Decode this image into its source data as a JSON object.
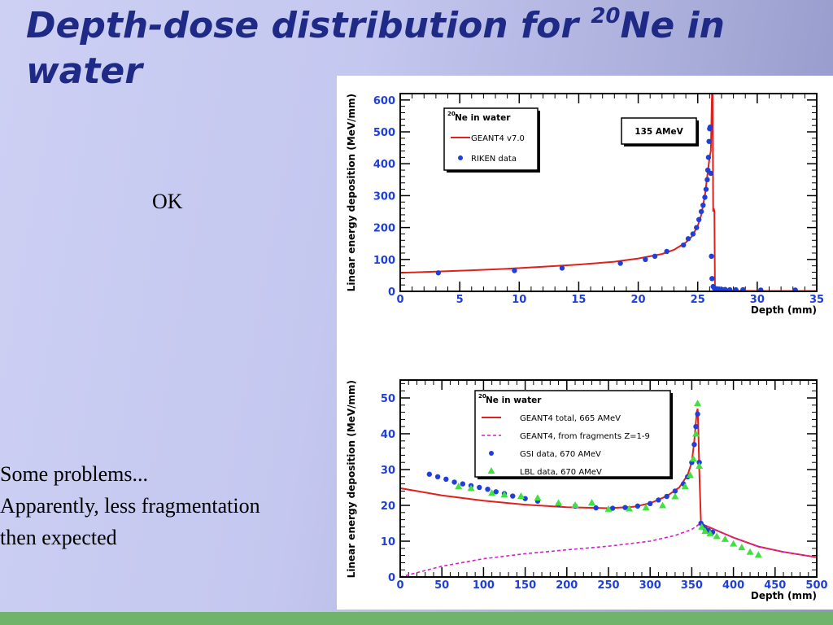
{
  "slide": {
    "title_main": "Depth-dose distribution for ",
    "title_sup": "20",
    "title_rest": "Ne in water",
    "ok_text": "OK",
    "problems_lines": [
      "Some problems...",
      "Apparently, less fragmentation",
      "then expected"
    ]
  },
  "colors": {
    "title": "#1f2a86",
    "geant_line": "#e0201c",
    "data_points": "#1f3fd8",
    "fragments_line": "#d020d0",
    "lbl_points": "#40e040",
    "axis_tick_labels": "#1f3fd8",
    "footer_bar": "#6fb46a"
  },
  "chart_data": [
    {
      "type": "line",
      "xlabel": "Depth (mm)",
      "ylabel": "Linear energy deposition (MeV/mm)",
      "xlim": [
        0,
        35
      ],
      "ylim": [
        0,
        620
      ],
      "xticks": [
        0,
        5,
        10,
        15,
        20,
        25,
        30,
        35
      ],
      "yticks": [
        0,
        100,
        200,
        300,
        400,
        500,
        600
      ],
      "annotation": "135 AMeV",
      "legend_title_sup": "20",
      "legend_title": "Ne in water",
      "legend_position": "top-left",
      "series": [
        {
          "name": "GEANT4 v7.0",
          "kind": "line",
          "x": [
            0,
            3,
            6,
            9,
            12,
            15,
            18,
            20,
            22,
            23,
            24,
            24.5,
            25,
            25.3,
            25.6,
            25.8,
            26.0,
            26.1,
            26.2,
            26.25,
            26.3,
            26.35,
            26.4,
            26.45,
            26.5,
            27,
            28,
            30,
            32,
            35
          ],
          "y": [
            58,
            62,
            66,
            71,
            77,
            84,
            93,
            103,
            117,
            130,
            153,
            172,
            205,
            240,
            300,
            360,
            420,
            440,
            625,
            625,
            250,
            260,
            250,
            5,
            3,
            2,
            2,
            1,
            1,
            1
          ]
        },
        {
          "name": "RIKEN data",
          "kind": "scatter",
          "x": [
            3.2,
            9.6,
            13.6,
            18.5,
            20.6,
            21.4,
            22.4,
            23.8,
            24.2,
            24.6,
            24.9,
            25.1,
            25.3,
            25.45,
            25.6,
            25.7,
            25.8,
            25.85,
            25.9,
            25.95,
            26.0,
            26.05,
            26.1,
            26.15,
            26.2,
            26.3,
            26.4,
            26.6,
            26.8,
            27.0,
            27.3,
            27.7,
            28.2,
            28.8,
            30.3,
            33.2
          ],
          "y": [
            58,
            65,
            73,
            88,
            100,
            110,
            125,
            145,
            165,
            180,
            200,
            225,
            250,
            270,
            295,
            320,
            350,
            380,
            420,
            470,
            510,
            515,
            370,
            110,
            40,
            15,
            10,
            8,
            7,
            6,
            6,
            5,
            5,
            5,
            4,
            4
          ]
        }
      ]
    },
    {
      "type": "line",
      "xlabel": "Depth (mm)",
      "ylabel": "Linear energy deposition (MeV/mm)",
      "xlim": [
        0,
        500
      ],
      "ylim": [
        0,
        55
      ],
      "xticks": [
        0,
        50,
        100,
        150,
        200,
        250,
        300,
        350,
        400,
        450,
        500
      ],
      "yticks": [
        0,
        10,
        20,
        30,
        40,
        50
      ],
      "legend_title_sup": "20",
      "legend_title": "Ne in water",
      "legend_position": "top-center",
      "series": [
        {
          "name": "GEANT4 total, 665 AMeV",
          "kind": "line",
          "x": [
            0,
            50,
            100,
            150,
            200,
            250,
            280,
            300,
            320,
            335,
            345,
            350,
            353,
            356,
            357,
            358,
            359,
            361,
            362,
            380,
            400,
            430,
            460,
            500
          ],
          "y": [
            24.8,
            22.8,
            21.3,
            20.2,
            19.5,
            19.2,
            19.6,
            20.6,
            22.6,
            25.0,
            28.5,
            32.0,
            38.0,
            46.0,
            47.0,
            40.0,
            30.0,
            15.0,
            14.8,
            13.0,
            11.0,
            8.5,
            7.0,
            5.5
          ]
        },
        {
          "name": "GEANT4, from fragments Z=1-9",
          "kind": "dashed",
          "x": [
            0,
            50,
            100,
            150,
            200,
            250,
            300,
            330,
            350,
            358,
            362,
            380,
            400,
            430,
            460,
            500
          ],
          "y": [
            0,
            3.0,
            5.1,
            6.5,
            7.6,
            8.6,
            10.0,
            11.6,
            13.3,
            14.6,
            14.8,
            13.0,
            11.0,
            8.5,
            7.0,
            5.5
          ]
        },
        {
          "name": "GSI data, 670 AMeV",
          "kind": "scatter",
          "x": [
            35,
            45,
            55,
            65,
            75,
            85,
            95,
            105,
            115,
            125,
            135,
            150,
            165,
            190,
            210,
            235,
            255,
            270,
            285,
            300,
            310,
            320,
            330,
            340,
            345,
            350,
            353,
            355,
            357,
            359,
            361,
            363,
            366,
            370,
            375
          ],
          "y": [
            28.7,
            28.0,
            27.3,
            26.5,
            26.0,
            25.5,
            25.0,
            24.5,
            23.8,
            23.3,
            22.6,
            21.9,
            21.2,
            20.3,
            19.8,
            19.3,
            19.2,
            19.4,
            19.8,
            20.5,
            21.5,
            22.5,
            24.0,
            26.0,
            28.0,
            32.0,
            37.0,
            42.0,
            45.5,
            32.0,
            15.0,
            14.2,
            13.5,
            13.0,
            12.5
          ]
        },
        {
          "name": "LBL data, 670 AMeV",
          "kind": "triangle",
          "x": [
            70,
            85,
            110,
            125,
            145,
            165,
            190,
            210,
            230,
            250,
            275,
            295,
            315,
            330,
            342,
            348,
            352,
            355,
            357,
            359,
            362,
            366,
            372,
            380,
            390,
            400,
            410,
            420,
            430
          ],
          "y": [
            25.3,
            24.8,
            23.5,
            23.0,
            22.6,
            22.1,
            20.7,
            20.1,
            20.8,
            19.0,
            19.1,
            19.4,
            20.0,
            22.5,
            25.3,
            28.5,
            33.0,
            40.0,
            48.5,
            31.0,
            14.0,
            12.8,
            12.2,
            11.4,
            10.6,
            9.3,
            8.3,
            7.0,
            6.2
          ]
        }
      ]
    }
  ]
}
